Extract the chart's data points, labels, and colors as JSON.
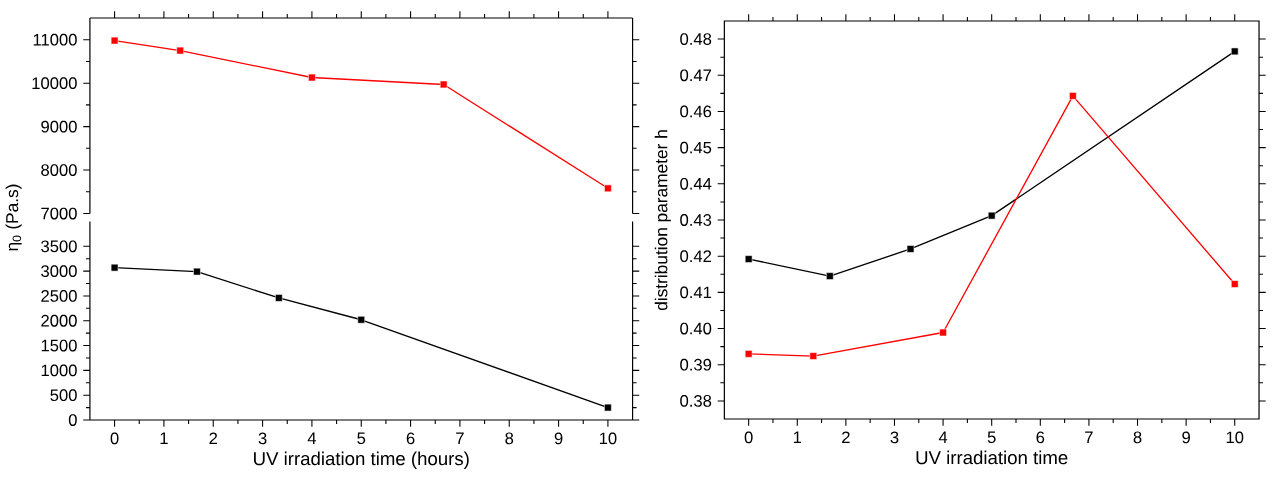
{
  "chart_data": [
    {
      "type": "line",
      "marker": "square",
      "tick_labels": "y",
      "xlim": [
        -0.5,
        10.5
      ],
      "xticks": [
        0,
        1,
        2,
        3,
        4,
        5,
        6,
        7,
        8,
        9,
        10
      ],
      "ylim": [
        7000,
        11500
      ],
      "yticks": [
        7000,
        8000,
        9000,
        10000,
        11000
      ],
      "series": [
        {
          "color": "#ff0000",
          "x": [
            0,
            1.33,
            4,
            6.67,
            10
          ],
          "values": [
            10980,
            10750,
            10130,
            9970,
            7580
          ]
        }
      ]
    },
    {
      "type": "line",
      "marker": "square",
      "xlabel": "UV irradiation time (hours)",
      "ylabel": "η$_{0}$ (Pa.s)",
      "xlim": [
        -0.5,
        10.5
      ],
      "xticks": [
        0,
        1,
        2,
        3,
        4,
        5,
        6,
        7,
        8,
        9,
        10
      ],
      "ylim": [
        0,
        4000
      ],
      "yticks": [
        0,
        500,
        1000,
        1500,
        2000,
        2500,
        3000,
        3500
      ],
      "series": [
        {
          "color": "#000000",
          "x": [
            0,
            1.67,
            3.33,
            5,
            10
          ],
          "values": [
            3070,
            2990,
            2460,
            2020,
            250
          ]
        }
      ]
    },
    {
      "type": "line",
      "marker": "square",
      "xlabel": "UV irradiation time",
      "ylabel": "distribution parameter h",
      "xlim": [
        -0.5,
        10.5
      ],
      "xticks": [
        0,
        1,
        2,
        3,
        4,
        5,
        6,
        7,
        8,
        9,
        10
      ],
      "ylim": [
        0.375,
        0.485
      ],
      "yticks": [
        {
          "value": 0.38,
          "label": "0.38"
        },
        {
          "value": 0.39,
          "label": "0.39"
        },
        {
          "value": 0.4,
          "label": "0.40"
        },
        {
          "value": 0.41,
          "label": "0.41"
        },
        {
          "value": 0.42,
          "label": "0.42"
        },
        {
          "value": 0.43,
          "label": "0.43"
        },
        {
          "value": 0.44,
          "label": "0.44"
        },
        {
          "value": 0.45,
          "label": "0.45"
        },
        {
          "value": 0.46,
          "label": "0.46"
        },
        {
          "value": 0.47,
          "label": "0.47"
        },
        {
          "value": 0.48,
          "label": "0.48"
        }
      ],
      "series": [
        {
          "color": "#000000",
          "x": [
            0,
            1.67,
            3.33,
            5,
            10
          ],
          "values": [
            0.4192,
            0.4145,
            0.422,
            0.4312,
            0.4766
          ]
        },
        {
          "color": "#ff0000",
          "x": [
            0,
            1.33,
            4,
            6.67,
            10
          ],
          "values": [
            0.393,
            0.3924,
            0.3989,
            0.4643,
            0.4123
          ]
        }
      ]
    }
  ]
}
